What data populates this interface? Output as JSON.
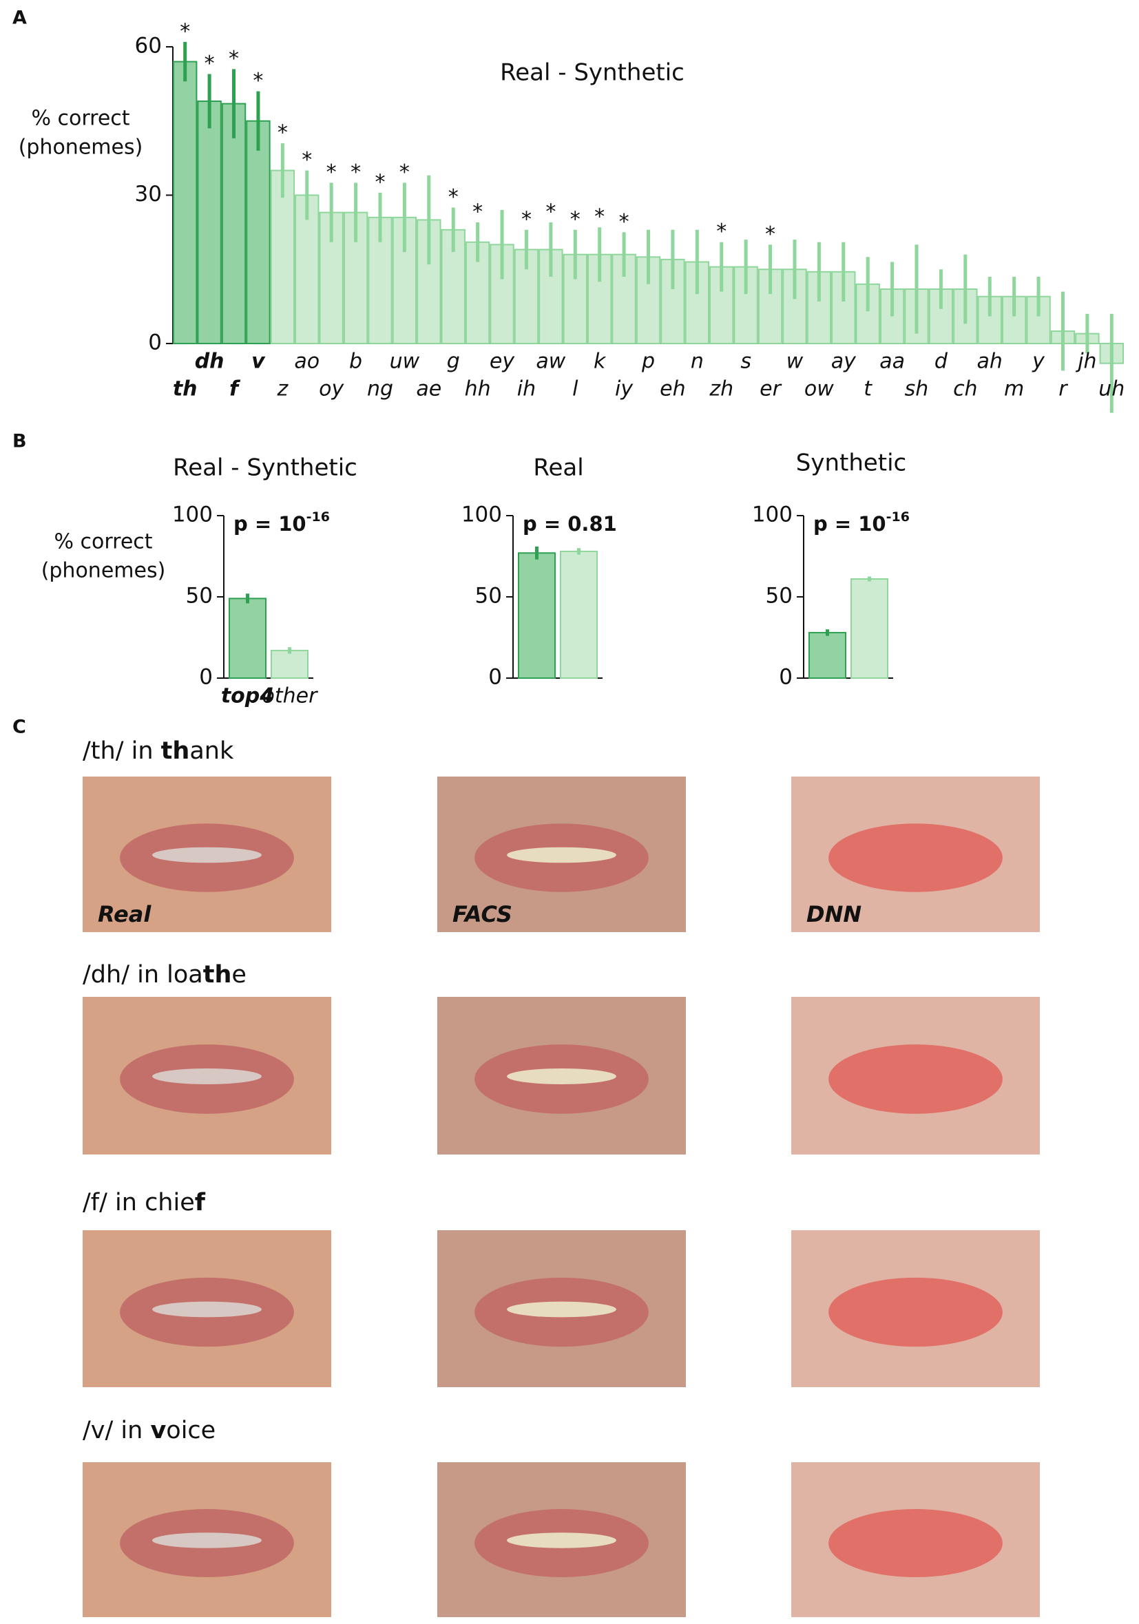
{
  "panel_labels": [
    "A",
    "B",
    "C"
  ],
  "chart_data": [
    {
      "type": "bar",
      "title": "Real - Synthetic",
      "ylabel": [
        "% correct",
        "(phonemes)"
      ],
      "categories": [
        "th",
        "dh",
        "f",
        "v",
        "z",
        "ao",
        "oy",
        "b",
        "ng",
        "uw",
        "ae",
        "g",
        "hh",
        "ey",
        "ih",
        "aw",
        "l",
        "k",
        "iy",
        "p",
        "eh",
        "n",
        "zh",
        "s",
        "er",
        "w",
        "ow",
        "ay",
        "t",
        "aa",
        "sh",
        "d",
        "ch",
        "ah",
        "m",
        "y",
        "r",
        "jh",
        "uh"
      ],
      "values": [
        57,
        49,
        48.5,
        45,
        35,
        30,
        26.5,
        26.5,
        25.5,
        25.5,
        25,
        23,
        20.5,
        20,
        19,
        19,
        18,
        18,
        18,
        17.5,
        17,
        16.5,
        15.5,
        15.5,
        15,
        15,
        14.5,
        14.5,
        12,
        11,
        11,
        11,
        11,
        9.5,
        9.5,
        9.5,
        2.5,
        2,
        -4
      ],
      "errors": [
        4,
        5.5,
        7,
        6,
        5.5,
        5,
        6,
        6,
        5,
        7,
        9,
        4.5,
        4,
        7,
        4,
        5.5,
        5,
        5.5,
        4.5,
        5.5,
        6,
        6.5,
        5,
        5.5,
        5,
        6,
        6,
        6,
        5.5,
        5.5,
        9,
        4,
        7,
        4,
        4,
        4,
        8,
        4,
        10
      ],
      "stars": [
        "*",
        "*",
        "*",
        "*",
        "*",
        "*",
        "*",
        "*",
        "*",
        "*",
        null,
        "*",
        "*",
        null,
        "*",
        "*",
        "*",
        "*",
        "*",
        null,
        null,
        null,
        "*",
        null,
        "*",
        null,
        null,
        null,
        null,
        null,
        null,
        null,
        null,
        null,
        null,
        null,
        null,
        null,
        null
      ],
      "colors": [
        "#93d3a3",
        "#93d3a3",
        "#93d3a3",
        "#93d3a3",
        "#cdebd0",
        "#cdebd0",
        "#cdebd0",
        "#cdebd0",
        "#cdebd0",
        "#cdebd0",
        "#cdebd0",
        "#cdebd0",
        "#cdebd0",
        "#cdebd0",
        "#cdebd0",
        "#cdebd0",
        "#cdebd0",
        "#cdebd0",
        "#cdebd0",
        "#cdebd0",
        "#cdebd0",
        "#cdebd0",
        "#cdebd0",
        "#cdebd0",
        "#cdebd0",
        "#cdebd0",
        "#cdebd0",
        "#cdebd0",
        "#cdebd0",
        "#cdebd0",
        "#cdebd0",
        "#cdebd0",
        "#cdebd0",
        "#cdebd0",
        "#cdebd0",
        "#cdebd0",
        "#cdebd0",
        "#cdebd0",
        "#cdebd0"
      ],
      "edge_colors": [
        "#2ea052",
        "#2ea052",
        "#2ea052",
        "#2ea052",
        "#8ed69b",
        "#8ed69b",
        "#8ed69b",
        "#8ed69b",
        "#8ed69b",
        "#8ed69b",
        "#8ed69b",
        "#8ed69b",
        "#8ed69b",
        "#8ed69b",
        "#8ed69b",
        "#8ed69b",
        "#8ed69b",
        "#8ed69b",
        "#8ed69b",
        "#8ed69b",
        "#8ed69b",
        "#8ed69b",
        "#8ed69b",
        "#8ed69b",
        "#8ed69b",
        "#8ed69b",
        "#8ed69b",
        "#8ed69b",
        "#8ed69b",
        "#8ed69b",
        "#8ed69b",
        "#8ed69b",
        "#8ed69b",
        "#8ed69b",
        "#8ed69b",
        "#8ed69b",
        "#8ed69b",
        "#8ed69b",
        "#8ed69b"
      ],
      "ylim": [
        0,
        60
      ],
      "yticks": [
        0,
        30,
        60
      ]
    },
    {
      "type": "bar",
      "title": "Real - Synthetic",
      "ylabel": [
        "% correct",
        "(phonemes)"
      ],
      "annotation": {
        "text": "p = 10",
        "exponent": "-16"
      },
      "categories": [
        "top4",
        "other"
      ],
      "values": [
        49,
        17
      ],
      "errors": [
        3,
        2
      ],
      "colors": [
        "#93d3a3",
        "#cdebd0"
      ],
      "edge_colors": [
        "#2ea052",
        "#8ed69b"
      ],
      "ylim": [
        0,
        100
      ],
      "yticks": [
        0,
        50,
        100
      ]
    },
    {
      "type": "bar",
      "title": "Real",
      "annotation": {
        "text": "p = 0.81"
      },
      "categories": [
        null,
        null
      ],
      "values": [
        77,
        78
      ],
      "errors": [
        4,
        2
      ],
      "colors": [
        "#93d3a3",
        "#cdebd0"
      ],
      "edge_colors": [
        "#2ea052",
        "#8ed69b"
      ],
      "ylim": [
        0,
        100
      ],
      "yticks": [
        0,
        50,
        100
      ]
    },
    {
      "type": "bar",
      "title": "Synthetic",
      "annotation": {
        "text": "p = 10",
        "exponent": "-16"
      },
      "categories": [
        null,
        null
      ],
      "values": [
        28,
        61
      ],
      "errors": [
        2,
        1.5
      ],
      "colors": [
        "#93d3a3",
        "#cdebd0"
      ],
      "edge_colors": [
        "#2ea052",
        "#8ed69b"
      ],
      "ylim": [
        0,
        100
      ],
      "yticks": [
        0,
        50,
        100
      ]
    }
  ],
  "panel_c": {
    "columns": [
      "Real",
      "FACS",
      "DNN"
    ],
    "rows": [
      [
        "/th/ in ",
        "th",
        "ank"
      ],
      [
        "/dh/ in loa",
        "th",
        "e"
      ],
      [
        "/f/ in chie",
        "f",
        ""
      ],
      [
        "/v/ in ",
        "v",
        "oice"
      ]
    ]
  }
}
